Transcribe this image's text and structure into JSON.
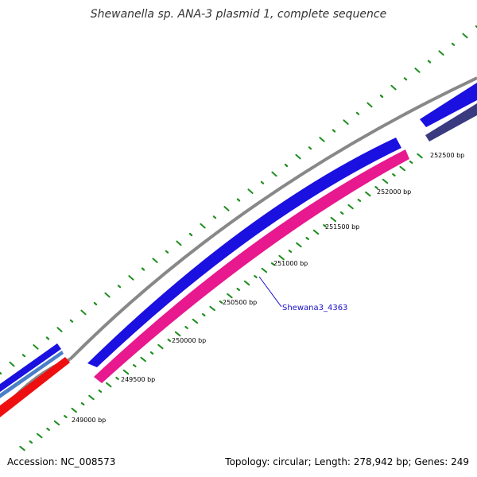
{
  "title": "Shewanella sp. ANA-3 plasmid 1, complete sequence",
  "footer": {
    "accession": "Accession: NC_008573",
    "summary": "Topology: circular; Length: 278,942 bp; Genes: 249"
  },
  "colors": {
    "backbone": "#888888",
    "tick": "#1f8f1f",
    "forward_gene": "#1a10e0",
    "reverse_gene": "#e8188e",
    "reverse_gene_alt": "#ee1010",
    "forward_gene_alt": "#4a7fc8",
    "reverse_gene_dark": "#3a3a80",
    "callout": "#1a10c8"
  },
  "tick_labels": [
    "249000 bp",
    "249500 bp",
    "250000 bp",
    "250500 bp",
    "251000 bp",
    "251500 bp",
    "252000 bp",
    "252500 bp"
  ],
  "gene_callout": {
    "label": "Shewana3_4363"
  }
}
